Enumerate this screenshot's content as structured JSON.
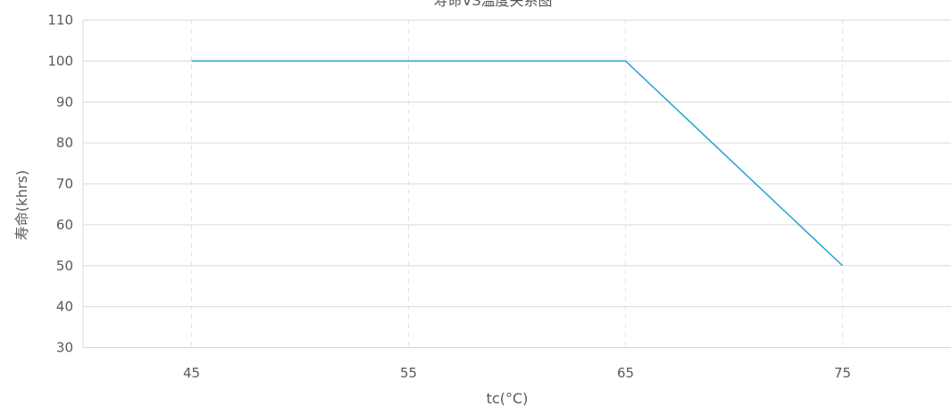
{
  "chart_data": {
    "type": "line",
    "title": "寿命VS温度关系图",
    "xlabel": "tc(°C)",
    "ylabel": "寿命(khrs)",
    "x_ticks": [
      "45",
      "55",
      "65",
      "75"
    ],
    "y_ticks": [
      "30",
      "40",
      "50",
      "60",
      "70",
      "80",
      "90",
      "100",
      "110"
    ],
    "xlim": [
      40,
      80
    ],
    "ylim": [
      30,
      110
    ],
    "grid": true,
    "series": [
      {
        "color": "#1fa3d4",
        "points": [
          {
            "x": 45,
            "y": 100
          },
          {
            "x": 55,
            "y": 100
          },
          {
            "x": 65,
            "y": 100
          },
          {
            "x": 75,
            "y": 50
          }
        ]
      }
    ]
  }
}
